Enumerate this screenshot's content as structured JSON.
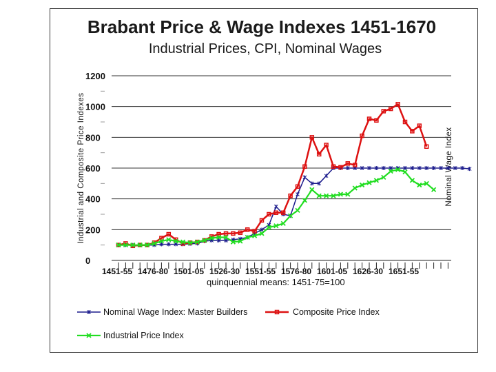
{
  "chart_data": {
    "type": "line",
    "title": "Brabant Price & Wage Indexes 1451-1670",
    "subtitle": "Industrial Prices, CPI, Nominal Wages",
    "ylabel": "Industrial and Composite Price Indexes",
    "ylabel_right": "Nominal Wage Index",
    "xlabel": "quinquennial means: 1451-75=100",
    "ylim": [
      0,
      1200
    ],
    "yticks": [
      "0",
      "200",
      "400",
      "600",
      "800",
      "1000",
      "1200"
    ],
    "x_tick_labels": [
      "1451-55",
      "1476-80",
      "1501-05",
      "1526-30",
      "1551-55",
      "1576-80",
      "1601-05",
      "1626-30",
      "1651-55"
    ],
    "legend_position": "bottom",
    "series": [
      {
        "name": "Nominal Wage Index: Master Builders",
        "color": "#1a1a8c",
        "marker": "star",
        "values": [
          100,
          100,
          100,
          100,
          100,
          100,
          105,
          105,
          105,
          105,
          108,
          110,
          125,
          130,
          130,
          130,
          135,
          140,
          150,
          175,
          200,
          230,
          350,
          300,
          290,
          430,
          540,
          500,
          500,
          550,
          600,
          600,
          600,
          600,
          600,
          600,
          600,
          600,
          600,
          600,
          600,
          600,
          600,
          600,
          600,
          600,
          600,
          600,
          600,
          595
        ]
      },
      {
        "name": "Composite Price Index",
        "color": "#dd1111",
        "marker": "square",
        "values": [
          100,
          110,
          95,
          100,
          100,
          115,
          145,
          170,
          135,
          110,
          115,
          120,
          130,
          155,
          170,
          175,
          175,
          180,
          200,
          190,
          260,
          300,
          310,
          310,
          420,
          480,
          610,
          800,
          690,
          750,
          610,
          605,
          630,
          620,
          810,
          920,
          910,
          970,
          985,
          1015,
          900,
          840,
          875,
          740
        ]
      },
      {
        "name": "Industrial Price Index",
        "color": "#22dd22",
        "marker": "cross",
        "values": [
          100,
          100,
          100,
          100,
          100,
          110,
          125,
          135,
          125,
          120,
          115,
          120,
          130,
          145,
          150,
          150,
          120,
          125,
          150,
          160,
          175,
          215,
          225,
          240,
          290,
          325,
          390,
          460,
          420,
          420,
          420,
          430,
          430,
          470,
          490,
          505,
          520,
          540,
          580,
          590,
          575,
          520,
          490,
          500,
          460
        ]
      }
    ]
  }
}
